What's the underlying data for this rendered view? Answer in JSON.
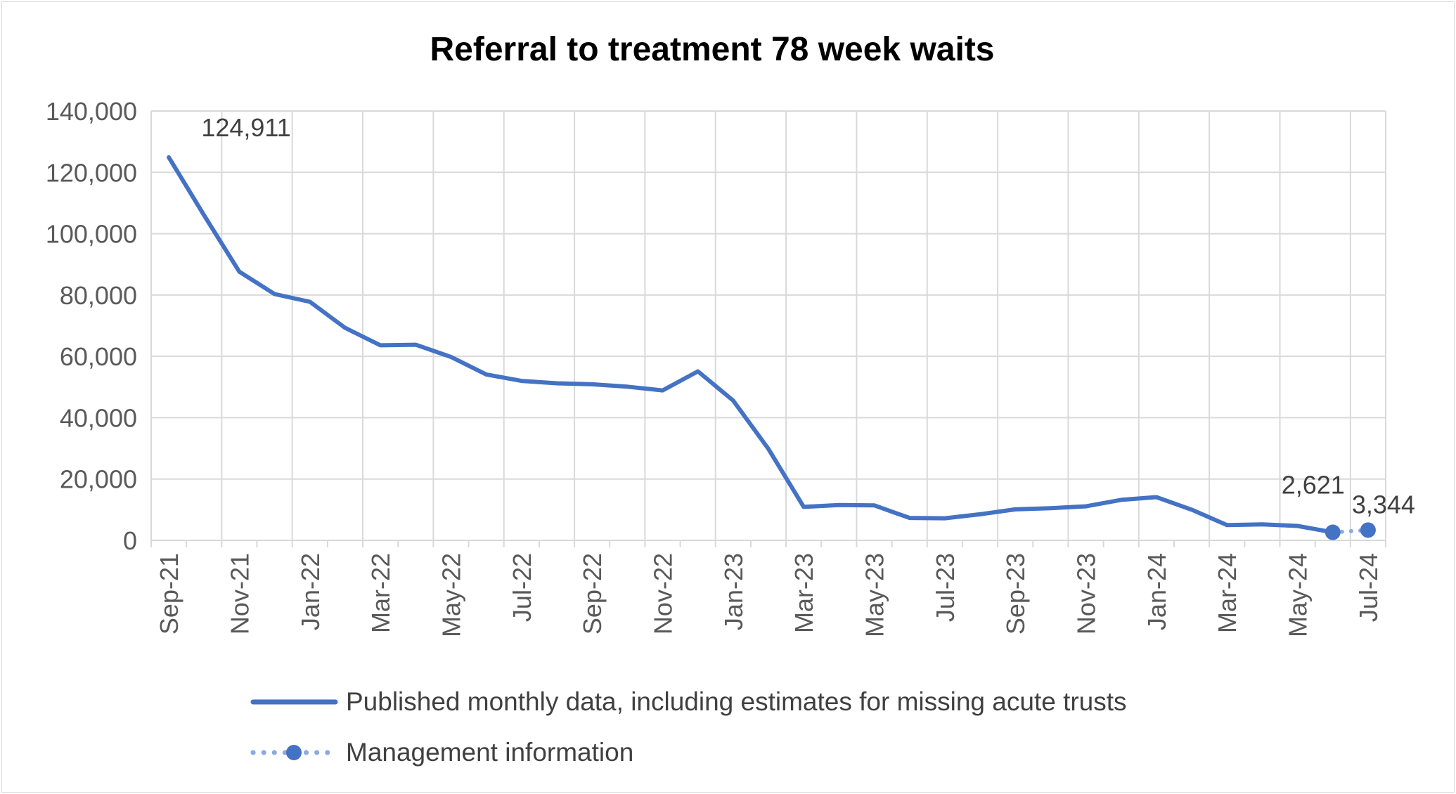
{
  "chart_data": {
    "type": "line",
    "title": "Referral to treatment 78 week waits",
    "xlabel": "",
    "ylabel": "",
    "ylim": [
      0,
      140000
    ],
    "y_ticks": [
      0,
      20000,
      40000,
      60000,
      80000,
      100000,
      120000,
      140000
    ],
    "y_tick_labels": [
      "0",
      "20,000",
      "40,000",
      "60,000",
      "80,000",
      "100,000",
      "120,000",
      "140,000"
    ],
    "x": [
      "Sep-21",
      "Oct-21",
      "Nov-21",
      "Dec-21",
      "Jan-22",
      "Feb-22",
      "Mar-22",
      "Apr-22",
      "May-22",
      "Jun-22",
      "Jul-22",
      "Aug-22",
      "Sep-22",
      "Oct-22",
      "Nov-22",
      "Dec-22",
      "Jan-23",
      "Feb-23",
      "Mar-23",
      "Apr-23",
      "May-23",
      "Jun-23",
      "Jul-23",
      "Aug-23",
      "Sep-23",
      "Oct-23",
      "Nov-23",
      "Dec-23",
      "Jan-24",
      "Feb-24",
      "Mar-24",
      "Apr-24",
      "May-24",
      "Jun-24",
      "Jul-24"
    ],
    "x_tick_labels": [
      "Sep-21",
      "Nov-21",
      "Jan-22",
      "Mar-22",
      "May-22",
      "Jul-22",
      "Sep-22",
      "Nov-22",
      "Jan-23",
      "Mar-23",
      "May-23",
      "Jul-23",
      "Sep-23",
      "Nov-23",
      "Jan-24",
      "Mar-24",
      "May-24",
      "Jul-24"
    ],
    "grid": true,
    "legend_position": "bottom",
    "series": [
      {
        "name": "Published monthly data, including estimates for missing acute trusts",
        "color": "#4472C4",
        "style": "solid",
        "values": [
          124911,
          106000,
          87600,
          80300,
          77800,
          69300,
          63600,
          63800,
          59800,
          54100,
          52000,
          51200,
          50900,
          50100,
          48900,
          55100,
          45600,
          29800,
          10900,
          11500,
          11400,
          7300,
          7200,
          8500,
          10100,
          10500,
          11100,
          13200,
          14100,
          10000,
          5000,
          5200,
          4700,
          2621,
          null
        ]
      },
      {
        "name": "Management information",
        "color": "#4472C4",
        "style": "dotted",
        "values": [
          null,
          null,
          null,
          null,
          null,
          null,
          null,
          null,
          null,
          null,
          null,
          null,
          null,
          null,
          null,
          null,
          null,
          null,
          null,
          null,
          null,
          null,
          null,
          null,
          null,
          null,
          null,
          null,
          null,
          null,
          null,
          null,
          null,
          2621,
          3344
        ]
      }
    ],
    "data_labels": [
      {
        "index": 0,
        "text": "124,911"
      },
      {
        "index": 33,
        "text": "2,621"
      },
      {
        "index": 34,
        "text": "3,344"
      }
    ]
  }
}
